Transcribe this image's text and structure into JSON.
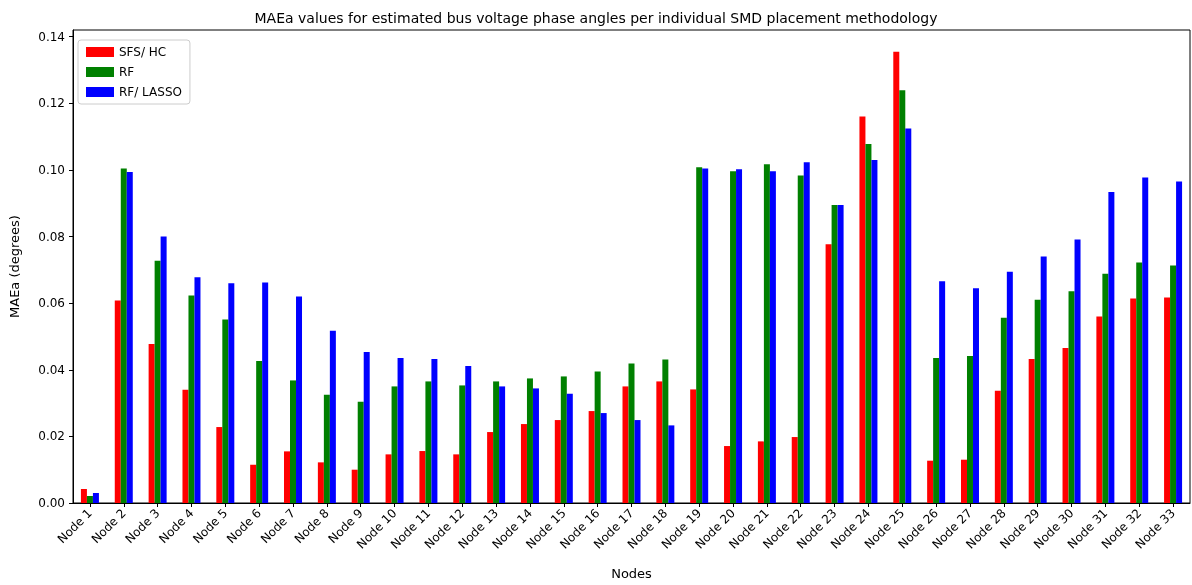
{
  "chart_data": {
    "type": "bar",
    "title": "MAEa values for estimated bus voltage phase angles per individual SMD placement methodology",
    "xlabel": "Nodes",
    "ylabel": "MAEa (degrees)",
    "categories": [
      "Node 1",
      "Node 2",
      "Node 3",
      "Node 4",
      "Node 5",
      "Node 6",
      "Node 7",
      "Node 8",
      "Node 9",
      "Node 10",
      "Node 11",
      "Node 12",
      "Node 13",
      "Node 14",
      "Node 15",
      "Node 16",
      "Node 17",
      "Node 18",
      "Node 19",
      "Node 20",
      "Node 21",
      "Node 22",
      "Node 23",
      "Node 24",
      "Node 25",
      "Node 26",
      "Node 27",
      "Node 28",
      "Node 29",
      "Node 30",
      "Node 31",
      "Node 32",
      "Node 33"
    ],
    "series": [
      {
        "name": "SFS/ HC",
        "color": "#ff0000",
        "values": [
          0.0042,
          0.0608,
          0.0477,
          0.034,
          0.0228,
          0.0115,
          0.0155,
          0.0122,
          0.01,
          0.0146,
          0.0156,
          0.0146,
          0.0213,
          0.0237,
          0.0249,
          0.0276,
          0.035,
          0.0365,
          0.0341,
          0.0171,
          0.0185,
          0.0198,
          0.0777,
          0.116,
          0.1355,
          0.0127,
          0.013,
          0.0337,
          0.0432,
          0.0465,
          0.056,
          0.0614,
          0.0617
        ]
      },
      {
        "name": "RF",
        "color": "#008000",
        "values": [
          0.0021,
          0.1004,
          0.0727,
          0.0623,
          0.0551,
          0.0426,
          0.0368,
          0.0325,
          0.0304,
          0.035,
          0.0365,
          0.0353,
          0.0365,
          0.0374,
          0.038,
          0.0395,
          0.0419,
          0.0431,
          0.1008,
          0.0996,
          0.1017,
          0.0983,
          0.0895,
          0.1078,
          0.1239,
          0.0435,
          0.0441,
          0.0556,
          0.061,
          0.0636,
          0.0688,
          0.0722,
          0.0713
        ]
      },
      {
        "name": "RF/ LASSO",
        "color": "#0000ff",
        "values": [
          0.003,
          0.0994,
          0.08,
          0.0678,
          0.066,
          0.0662,
          0.062,
          0.0517,
          0.0453,
          0.0435,
          0.0432,
          0.0411,
          0.035,
          0.0344,
          0.0328,
          0.027,
          0.0249,
          0.0233,
          0.1004,
          0.1002,
          0.0996,
          0.1023,
          0.0895,
          0.103,
          0.1124,
          0.0666,
          0.0645,
          0.0694,
          0.074,
          0.0791,
          0.0934,
          0.0977,
          0.0965
        ]
      }
    ],
    "ylim": [
      0,
      0.142
    ],
    "yticks": [
      {
        "value": 0,
        "label": "0.00"
      },
      {
        "value": 0.02,
        "label": "0.02"
      },
      {
        "value": 0.04,
        "label": "0.04"
      },
      {
        "value": 0.06,
        "label": "0.06"
      },
      {
        "value": 0.08,
        "label": "0.08"
      },
      {
        "value": 0.1,
        "label": "0.10"
      },
      {
        "value": 0.12,
        "label": "0.12"
      },
      {
        "value": 0.14,
        "label": "0.14"
      }
    ],
    "grid": false,
    "legend": "top left"
  }
}
